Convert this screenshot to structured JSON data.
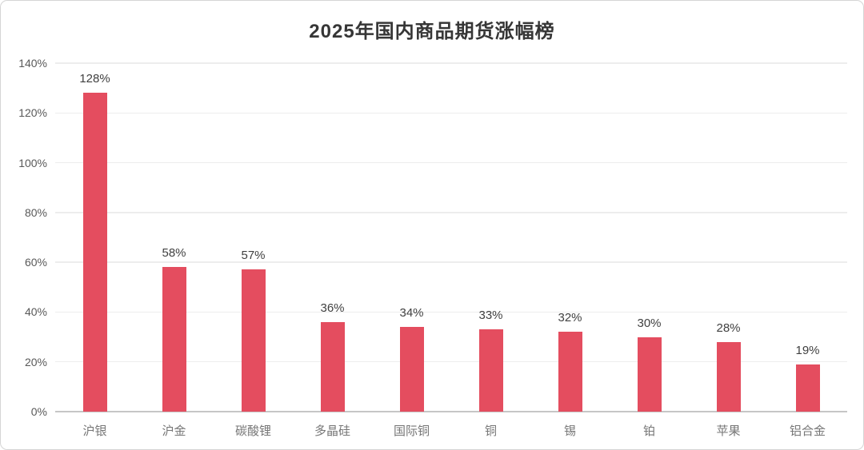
{
  "chart_data": {
    "type": "bar",
    "title": "2025年国内商品期货涨幅榜",
    "categories": [
      "沪银",
      "沪金",
      "碳酸锂",
      "多晶硅",
      "国际铜",
      "铜",
      "锡",
      "铂",
      "苹果",
      "铝合金"
    ],
    "values": [
      128,
      58,
      57,
      36,
      34,
      33,
      32,
      30,
      28,
      19
    ],
    "data_labels": [
      "128%",
      "58%",
      "57%",
      "36%",
      "34%",
      "33%",
      "32%",
      "30%",
      "28%",
      "19%"
    ],
    "xlabel": "",
    "ylabel": "",
    "y_ticks": [
      "0%",
      "20%",
      "40%",
      "60%",
      "80%",
      "100%",
      "120%",
      "140%"
    ],
    "y_tick_values": [
      0,
      20,
      40,
      60,
      80,
      100,
      120,
      140
    ],
    "ylim": [
      0,
      140
    ],
    "grid": true,
    "legend": "none",
    "colors": {
      "bar": "#e44d5f",
      "grid_line": "#ededed",
      "axis_line": "#c6c6c6",
      "y_tick_label": "#595959",
      "data_label": "#404040",
      "category_label": "#767676",
      "title": "#363636",
      "card_border": "#d5d5d5",
      "background": "#ffffff"
    }
  }
}
